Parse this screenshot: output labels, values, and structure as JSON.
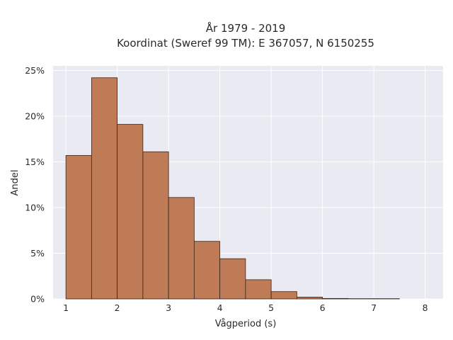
{
  "chart_data": {
    "type": "bar",
    "title_line1": "År 1979 - 2019",
    "title_line2": "Koordinat (Sweref 99 TM): E 367057, N 6150255",
    "xlabel": "Vågperiod (s)",
    "ylabel": "Andel",
    "bin_edges": [
      1.0,
      1.5,
      2.0,
      2.5,
      3.0,
      3.5,
      4.0,
      4.5,
      5.0,
      5.5,
      6.0,
      6.5,
      7.0,
      7.5
    ],
    "values": [
      15.7,
      24.2,
      19.1,
      16.1,
      11.1,
      6.3,
      4.4,
      2.1,
      0.8,
      0.2,
      0.05,
      0.03,
      0.03
    ],
    "xlim": [
      0.75,
      8.35
    ],
    "ylim": [
      0,
      25.5
    ],
    "xticks": [
      1,
      2,
      3,
      4,
      5,
      6,
      7,
      8
    ],
    "xtick_labels": [
      "1",
      "2",
      "3",
      "4",
      "5",
      "6",
      "7",
      "8"
    ],
    "yticks": [
      0,
      5,
      10,
      15,
      20,
      25
    ],
    "ytick_labels": [
      "0%",
      "5%",
      "10%",
      "15%",
      "20%",
      "25%"
    ],
    "grid": true,
    "colors": {
      "bar_fill": "#BE7B55",
      "bar_stroke": "#3a2418",
      "plot_bg": "#EAEAF2",
      "grid": "#ffffff"
    }
  }
}
